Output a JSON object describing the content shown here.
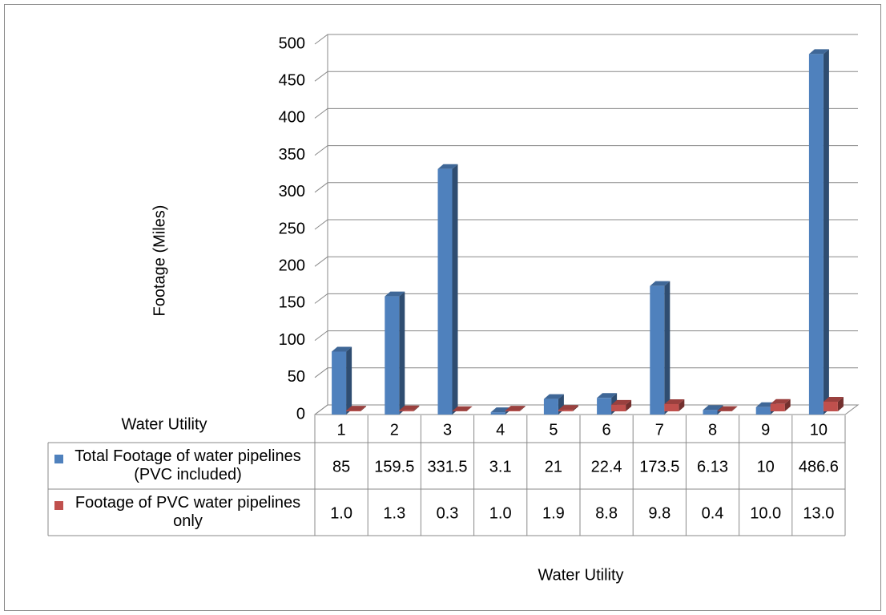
{
  "chart_data": {
    "type": "bar3d",
    "y_label": "Footage (Miles)",
    "x_label": "Water Utility",
    "categories": [
      "1",
      "2",
      "3",
      "4",
      "5",
      "6",
      "7",
      "8",
      "9",
      "10"
    ],
    "series": [
      {
        "name": "Total Footage of water pipelines (PVC included)",
        "color": "#4f81bd",
        "values": [
          85,
          159.5,
          331.5,
          3.1,
          21,
          22.4,
          173.5,
          6.13,
          10,
          486.6
        ]
      },
      {
        "name": "Footage of PVC water pipelines only",
        "color": "#c0504d",
        "values": [
          1.0,
          1.3,
          0.3,
          1.0,
          1.9,
          8.8,
          9.8,
          0.4,
          10.0,
          13.0
        ],
        "value_labels": [
          "1.0",
          "1.3",
          "0.3",
          "1.0",
          "1.9",
          "8.8",
          "9.8",
          "0.4",
          "10.0",
          "13.0"
        ]
      }
    ],
    "ylim": [
      0,
      500
    ],
    "yticks": [
      0,
      50,
      100,
      150,
      200,
      250,
      300,
      350,
      400,
      450,
      500
    ],
    "grid": true
  }
}
